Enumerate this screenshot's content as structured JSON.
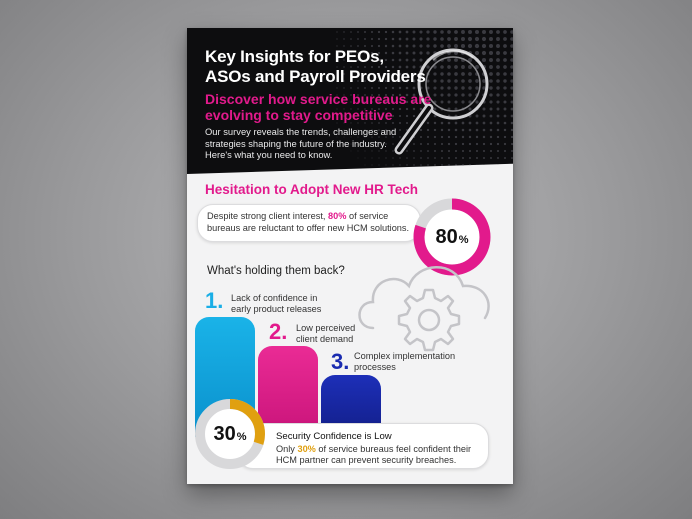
{
  "hero": {
    "title_line1": "Key Insights for PEOs,",
    "title_line2": "ASOs and Payroll Providers",
    "subtitle_line1": "Discover how service bureaus are",
    "subtitle_line2": "evolving to stay competitive",
    "body_line1": "Our survey reveals the trends, challenges and",
    "body_line2": "strategies shaping the future of the industry.",
    "body_line3": "Here's what you need to know.",
    "icon": "magnifying-glass-icon"
  },
  "hesitation": {
    "title": "Hesitation to Adopt New HR Tech",
    "text_before": "Despite strong client interest, ",
    "highlight": "80%",
    "text_after": " of service bureaus are reluctant to offer new HCM solutions.",
    "donut_value": "80",
    "donut_unit": "%",
    "donut_fraction": 0.8
  },
  "barriers": {
    "question": "What's holding them back?",
    "icon": "cloud-gear-icon",
    "items": [
      {
        "number": "1.",
        "line1": "Lack of confidence in",
        "line2": "early product releases",
        "color": "#1aaee6"
      },
      {
        "number": "2.",
        "line1": "Low perceived",
        "line2": "client demand",
        "color": "#e21a8c"
      },
      {
        "number": "3.",
        "line1": "Complex implementation",
        "line2": "processes",
        "color": "#1a2bb0"
      }
    ]
  },
  "security": {
    "title": "Security Confidence is Low",
    "text_before": "Only ",
    "highlight": "30%",
    "text_after": " of service bureaus feel confident their HCM partner can prevent security breaches.",
    "donut_value": "30",
    "donut_unit": "%",
    "donut_fraction": 0.3
  },
  "colors": {
    "brand_pink": "#e21a8c",
    "cyan": "#1aaee6",
    "navy": "#1a2bb0",
    "gold": "#e0a010",
    "hero_bg": "#0d0d0f"
  }
}
